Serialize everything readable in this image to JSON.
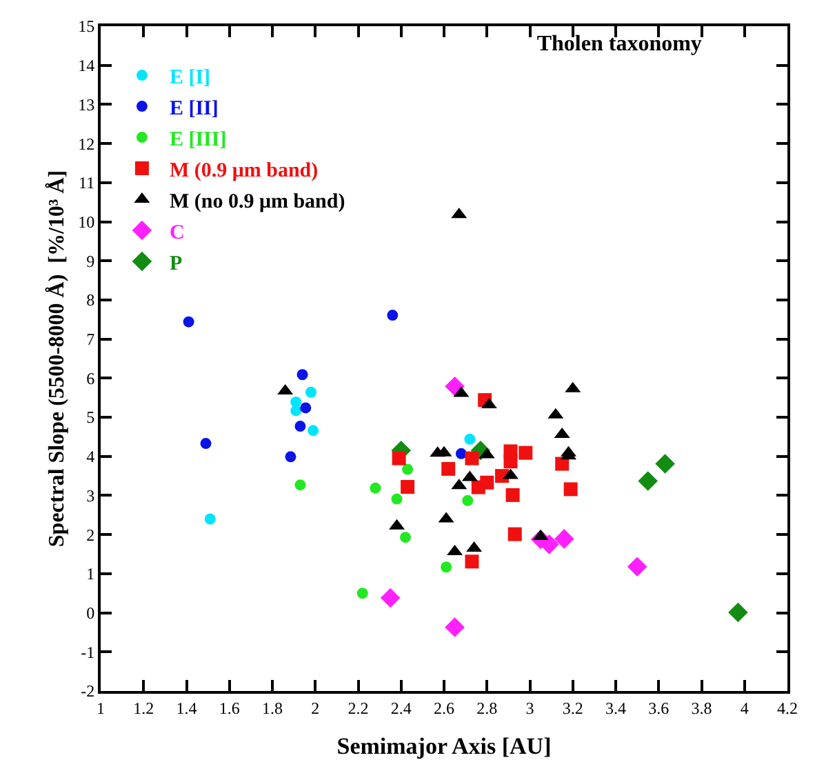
{
  "chart_data": {
    "type": "scatter",
    "title": "Tholen taxonomy",
    "xlabel": "Semimajor Axis [AU]",
    "ylabel": "Spectral Slope (5500-8000 Å)  [%/10³ Å]",
    "xlim": [
      1,
      4.2
    ],
    "xticks": [
      1,
      1.2,
      1.4,
      1.6,
      1.8,
      2,
      2.2,
      2.4,
      2.6,
      2.8,
      3,
      3.2,
      3.4,
      3.6,
      3.8,
      4,
      4.2
    ],
    "ylim": [
      -2,
      15
    ],
    "yticks": [
      -2,
      -1,
      0,
      1,
      2,
      3,
      4,
      5,
      6,
      7,
      8,
      9,
      10,
      11,
      12,
      13,
      14,
      15
    ],
    "legend": "top left",
    "series": [
      {
        "name": "E [I]",
        "color": "#00e5ff",
        "marker": "circle",
        "x": [
          1.51,
          1.91,
          1.91,
          1.98,
          1.99,
          2.72
        ],
        "values": [
          2.4,
          5.39,
          5.17,
          5.64,
          4.66,
          4.44
        ]
      },
      {
        "name": "E [II]",
        "color": "#0a14e6",
        "marker": "circle",
        "x": [
          1.41,
          1.49,
          1.94,
          1.955,
          1.93,
          1.885,
          2.36,
          2.68
        ],
        "values": [
          7.44,
          4.33,
          6.09,
          5.24,
          4.77,
          3.99,
          7.61,
          4.07
        ]
      },
      {
        "name": "E [III]",
        "color": "#22e822",
        "marker": "circle",
        "x": [
          1.93,
          2.28,
          2.38,
          2.43,
          2.42,
          2.22,
          2.61,
          2.71
        ],
        "values": [
          3.27,
          3.19,
          2.91,
          3.67,
          1.93,
          0.5,
          1.17,
          2.87
        ]
      },
      {
        "name": "M (0.9 μm band)",
        "color": "#f01010",
        "marker": "square",
        "x": [
          2.39,
          2.43,
          2.79,
          2.62,
          2.73,
          2.76,
          2.8,
          2.87,
          2.91,
          2.91,
          2.98,
          2.92,
          2.93,
          2.73,
          3.15,
          3.19
        ],
        "values": [
          3.95,
          3.22,
          5.44,
          3.68,
          3.95,
          3.21,
          3.33,
          3.5,
          3.87,
          4.13,
          4.09,
          3.01,
          2.01,
          1.31,
          3.81,
          3.16
        ]
      },
      {
        "name": "M (no 0.9 μm band)",
        "color": "#000000",
        "marker": "triangle",
        "x": [
          2.67,
          1.86,
          2.38,
          2.57,
          2.6,
          2.68,
          2.81,
          2.8,
          2.72,
          2.67,
          2.91,
          2.61,
          2.65,
          2.74,
          3.05,
          3.12,
          3.2,
          3.15,
          3.18,
          3.18
        ],
        "values": [
          10.18,
          5.67,
          2.22,
          4.08,
          4.09,
          5.61,
          5.32,
          4.04,
          3.46,
          3.25,
          3.51,
          2.4,
          1.56,
          1.65,
          1.95,
          5.06,
          5.73,
          4.56,
          4.09,
          4.01
        ]
      },
      {
        "name": "C",
        "color": "#ff20ff",
        "marker": "diamond",
        "x": [
          2.35,
          2.65,
          2.65,
          3.05,
          3.09,
          3.16,
          3.5
        ],
        "values": [
          0.38,
          5.79,
          -0.37,
          1.88,
          1.75,
          1.89,
          1.18
        ]
      },
      {
        "name": "P",
        "color": "#128c12",
        "marker": "diamond",
        "x": [
          2.4,
          2.77,
          3.55,
          3.63,
          3.97
        ],
        "values": [
          4.15,
          4.15,
          3.37,
          3.81,
          0.01
        ]
      }
    ]
  }
}
